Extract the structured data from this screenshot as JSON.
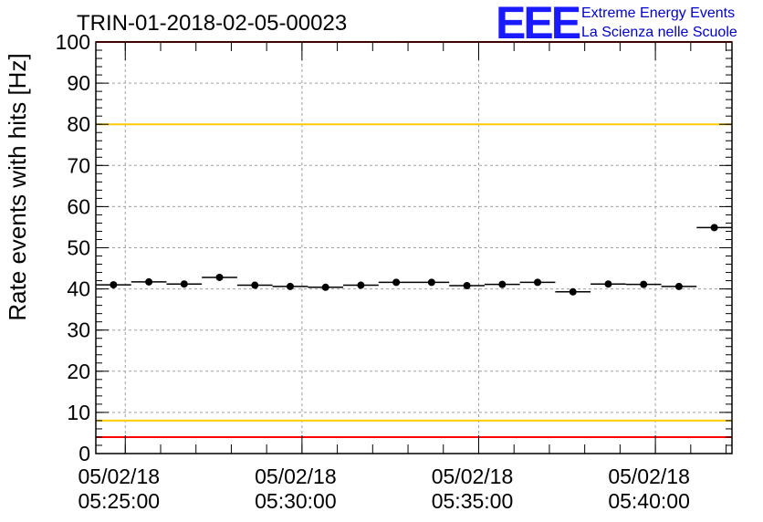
{
  "chart_data": {
    "type": "scatter",
    "title": "TRIN-01-2018-02-05-00023",
    "xlabel": "",
    "ylabel": "Rate events with hits [Hz]",
    "ylim": [
      0,
      100
    ],
    "y_ticks": [
      0,
      10,
      20,
      30,
      40,
      50,
      60,
      70,
      80,
      90,
      100
    ],
    "xlim": [
      "05/02/18 05:24:10",
      "05/02/18 05:42:10"
    ],
    "x_ticks": [
      {
        "date": "05/02/18",
        "time": "05:25:00"
      },
      {
        "date": "05/02/18",
        "time": "05:30:00"
      },
      {
        "date": "05/02/18",
        "time": "05:35:00"
      },
      {
        "date": "05/02/18",
        "time": "05:40:00"
      }
    ],
    "grid": true,
    "bin_width_seconds": 60,
    "points": [
      {
        "t": "05:24:40",
        "y": 41.0
      },
      {
        "t": "05:25:40",
        "y": 41.7
      },
      {
        "t": "05:26:40",
        "y": 41.2
      },
      {
        "t": "05:27:40",
        "y": 42.8
      },
      {
        "t": "05:28:40",
        "y": 40.9
      },
      {
        "t": "05:29:40",
        "y": 40.6
      },
      {
        "t": "05:30:40",
        "y": 40.4
      },
      {
        "t": "05:31:40",
        "y": 40.9
      },
      {
        "t": "05:32:40",
        "y": 41.6
      },
      {
        "t": "05:33:40",
        "y": 41.6
      },
      {
        "t": "05:34:40",
        "y": 40.8
      },
      {
        "t": "05:35:40",
        "y": 41.1
      },
      {
        "t": "05:36:40",
        "y": 41.6
      },
      {
        "t": "05:37:40",
        "y": 39.3
      },
      {
        "t": "05:38:40",
        "y": 41.2
      },
      {
        "t": "05:39:40",
        "y": 41.1
      },
      {
        "t": "05:40:40",
        "y": 40.6
      },
      {
        "t": "05:41:40",
        "y": 54.9
      }
    ],
    "threshold_lines": [
      {
        "y": 100,
        "color": "#ff0000"
      },
      {
        "y": 80,
        "color": "#ffcc00"
      },
      {
        "y": 8,
        "color": "#ffcc00"
      },
      {
        "y": 4,
        "color": "#ff0000"
      }
    ]
  },
  "logo": {
    "mark": "EEE",
    "line1": "Extreme Energy Events",
    "line2": "La Scienza nelle Scuole",
    "color": "#1a1aff"
  }
}
